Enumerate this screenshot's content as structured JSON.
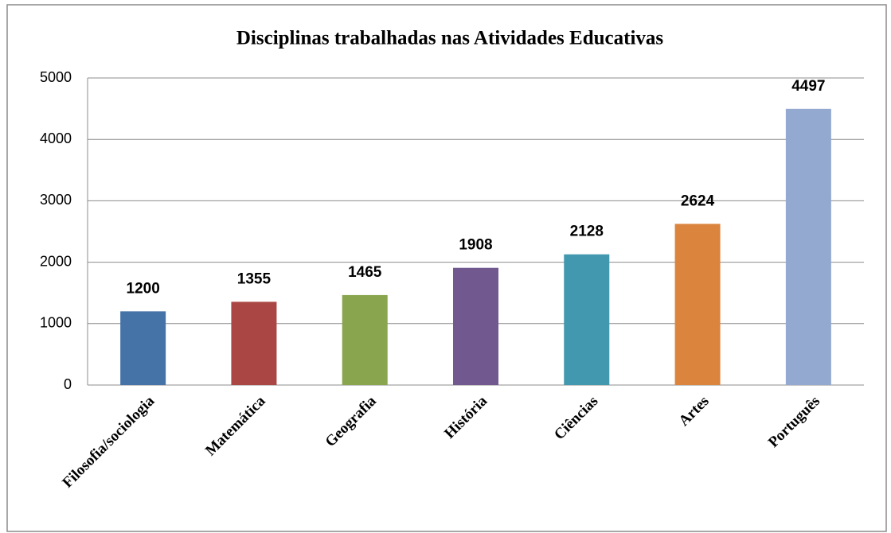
{
  "chart_data": {
    "type": "bar",
    "title": "Disciplinas trabalhadas nas Atividades Educativas",
    "categories": [
      "Filosofia/sociologia",
      "Matemática",
      "Geografia",
      "História",
      "Ciências",
      "Artes",
      "Português"
    ],
    "values": [
      1200,
      1355,
      1465,
      1908,
      2128,
      2624,
      4497
    ],
    "colors": [
      "#4572a7",
      "#aa4643",
      "#89a54e",
      "#71588f",
      "#4198af",
      "#db843d",
      "#93a9cf"
    ],
    "ylim": [
      0,
      5000
    ],
    "yticks": [
      0,
      1000,
      2000,
      3000,
      4000,
      5000
    ],
    "grid": true
  }
}
